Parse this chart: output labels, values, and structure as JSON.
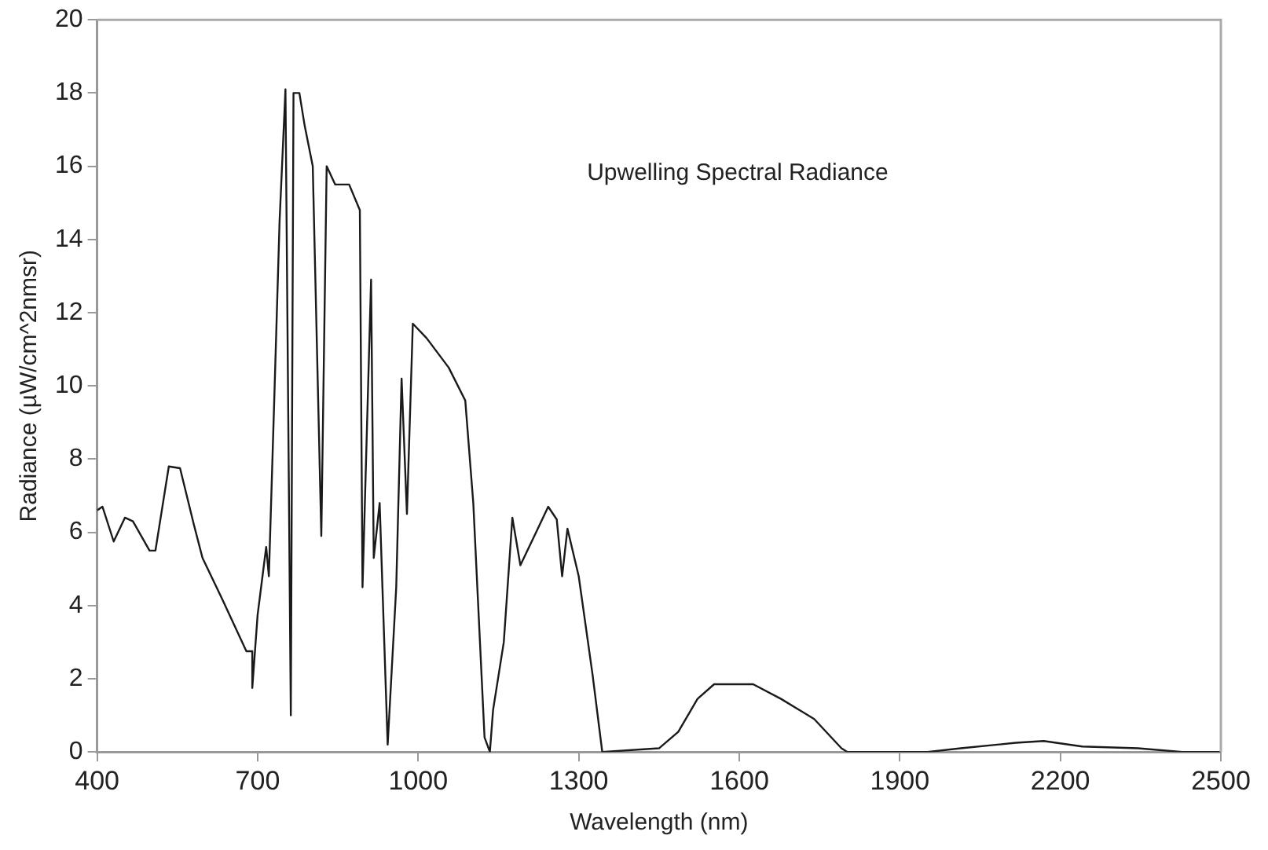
{
  "chart_data": {
    "type": "line",
    "title": "Upwelling Spectral Radiance",
    "xlabel": "Wavelength (nm)",
    "ylabel": "Radiance (µW/cm^2nmsr)",
    "xlim": [
      400,
      2500
    ],
    "xticks": [
      400,
      700,
      1000,
      1300,
      1600,
      1900,
      2200,
      2500
    ],
    "ylim": [
      0,
      20
    ],
    "yticks": [
      0,
      2,
      4,
      6,
      8,
      10,
      12,
      14,
      16,
      18,
      20
    ],
    "grid": false,
    "marker": "none",
    "line_style": "solid",
    "series": [
      {
        "color": "#1a1a1a",
        "x": [
          400,
          410,
          431,
          452,
          467,
          498,
          509,
          534,
          555,
          581,
          597,
          633,
          679,
          690,
          690,
          700,
          716,
          721,
          731,
          741,
          752,
          762,
          767,
          778,
          788,
          803,
          819,
          829,
          845,
          871,
          891,
          896,
          912,
          917,
          928,
          943,
          959,
          969,
          979,
          990,
          1016,
          1057,
          1088,
          1103,
          1124,
          1134,
          1140,
          1160,
          1176,
          1191,
          1222,
          1243,
          1259,
          1269,
          1279,
          1300,
          1326,
          1344,
          1450,
          1486,
          1522,
          1553,
          1594,
          1626,
          1678,
          1740,
          1791,
          1802,
          1952,
          2014,
          2117,
          2169,
          2241,
          2345,
          2428,
          2500
        ],
        "values": [
          6.6,
          6.7,
          5.75,
          6.4,
          6.3,
          5.5,
          5.5,
          7.8,
          7.75,
          6.2,
          5.3,
          4.2,
          2.75,
          2.75,
          1.75,
          3.75,
          5.6,
          4.8,
          9.6,
          14.5,
          18.1,
          1.0,
          18.0,
          18.0,
          17.1,
          16.0,
          5.9,
          16.0,
          15.5,
          15.5,
          14.8,
          4.5,
          12.9,
          5.3,
          6.8,
          0.2,
          4.5,
          10.2,
          6.5,
          11.7,
          11.3,
          10.5,
          9.6,
          6.8,
          0.4,
          0,
          1.15,
          3.0,
          6.4,
          5.1,
          6.05,
          6.7,
          6.35,
          4.8,
          6.1,
          4.8,
          2.1,
          0,
          0.1,
          0.55,
          1.45,
          1.85,
          1.85,
          1.85,
          1.45,
          0.9,
          0.1,
          0,
          0,
          0.1,
          0.25,
          0.3,
          0.15,
          0.1,
          0,
          0
        ]
      }
    ]
  }
}
